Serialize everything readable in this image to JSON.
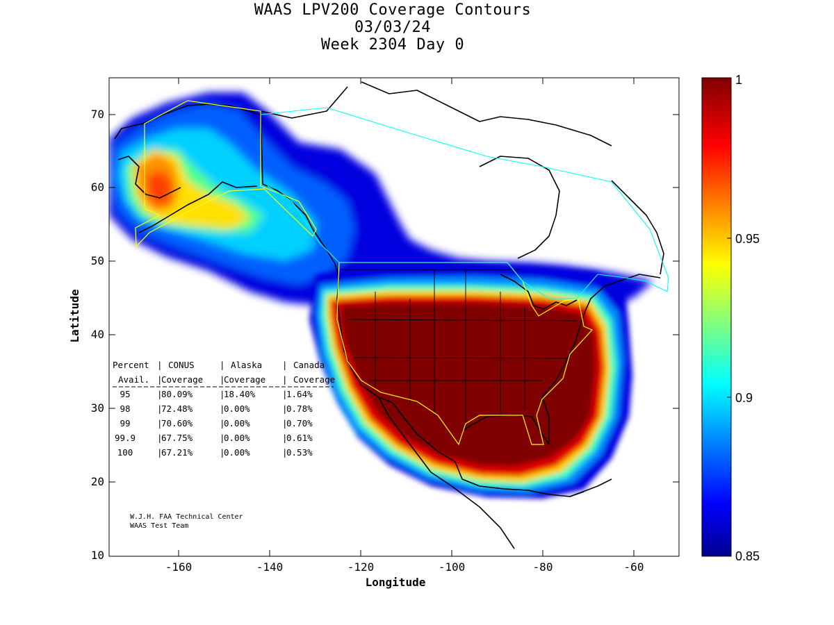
{
  "title": {
    "line1": "WAAS LPV200 Coverage Contours",
    "line2": "03/03/24",
    "line3": "Week 2304 Day 0"
  },
  "axes": {
    "xlabel": "Longitude",
    "ylabel": "Latitude",
    "x_ticks": [
      "-160",
      "-140",
      "-120",
      "-100",
      "-80",
      "-60"
    ],
    "y_ticks": [
      "70",
      "60",
      "50",
      "40",
      "30",
      "20",
      "10"
    ],
    "xlim": [
      -175,
      -50
    ],
    "ylim": [
      10,
      75
    ]
  },
  "colorbar": {
    "ticks": [
      "1",
      "0.95",
      "0.9",
      "0.85"
    ],
    "range": [
      0.85,
      1
    ],
    "colormap": "jet"
  },
  "table": {
    "header1": [
      "Percent",
      "CONUS",
      "Alaska",
      "Canada"
    ],
    "header2": [
      "Avail.",
      "Coverage",
      "Coverage",
      "Coverage"
    ],
    "rows": [
      [
        "95",
        "80.09%",
        "18.40%",
        "1.64%"
      ],
      [
        "98",
        "72.48%",
        "0.00%",
        "0.78%"
      ],
      [
        "99",
        "70.60%",
        "0.00%",
        "0.70%"
      ],
      [
        "99.9",
        "67.75%",
        "0.00%",
        "0.61%"
      ],
      [
        "100",
        "67.21%",
        "0.00%",
        "0.53%"
      ]
    ]
  },
  "credit": {
    "line1": "W.J.H. FAA Technical Center",
    "line2": "WAAS Test Team"
  },
  "colors": {
    "max": "#800000",
    "min": "#00008f",
    "conus_boundary": "#ffff00",
    "canada_boundary": "#00ffff"
  }
}
